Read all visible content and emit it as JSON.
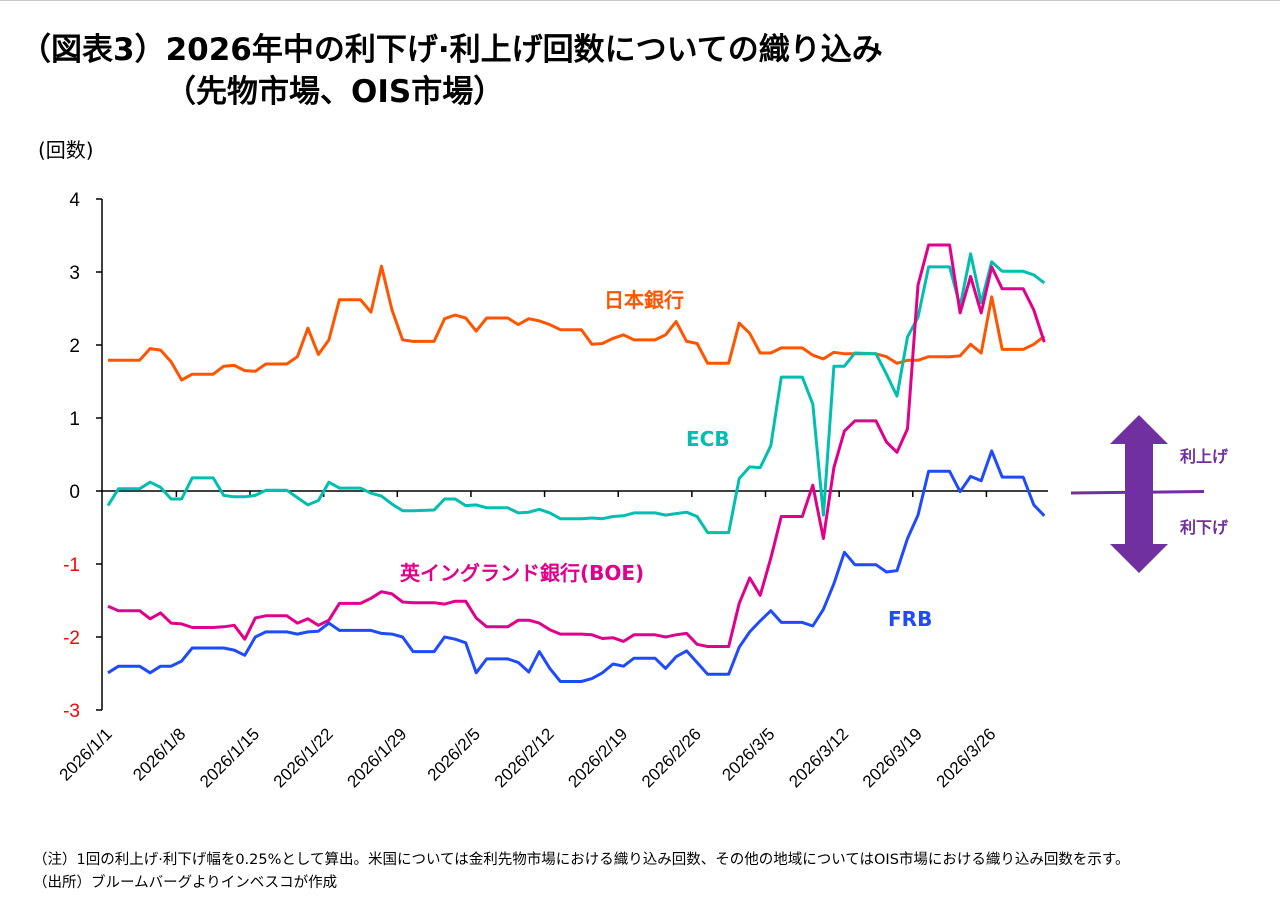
{
  "title": {
    "line1": "（図表3）2026年中の利下げ·利上げ回数についての織り込み",
    "line2": "（先物市場、OIS市場）"
  },
  "footnotes": {
    "note": "（注）1回の利上げ·利下げ幅を0.25%として算出。米国については金利先物市場における織り込み回数、その他の地域についてはOIS市場における織り込み回数を示す。",
    "source": "（出所）ブルームバーグよりインベスコが作成"
  },
  "legend_arrow": {
    "up_label": "利上げ",
    "down_label": "利下げ",
    "color": "#7030A0"
  },
  "chart_data": {
    "type": "line",
    "ylabel": "(回数)",
    "ylim": [
      -3,
      4
    ],
    "yticks": [
      "4",
      "3",
      "2",
      "1",
      "0",
      "-1",
      "-2",
      "-3"
    ],
    "ytick_colors": {
      "positive": "#000000",
      "negative": "#FF0000"
    },
    "xlim": [
      "2026/1/1",
      "2026/3/31"
    ],
    "xticks": [
      "2026/1/1",
      "2026/1/8",
      "2026/1/15",
      "2026/1/22",
      "2026/1/29",
      "2026/2/5",
      "2026/2/12",
      "2026/2/19",
      "2026/2/26",
      "2026/3/5",
      "2026/3/12",
      "2026/3/19",
      "2026/3/26"
    ],
    "grid": false,
    "legend": "inline labels",
    "x": [
      "2026/1/1",
      "2026/1/2",
      "2026/1/4",
      "2026/1/5",
      "2026/1/6",
      "2026/1/7",
      "2026/1/8",
      "2026/1/9",
      "2026/1/11",
      "2026/1/12",
      "2026/1/13",
      "2026/1/14",
      "2026/1/15",
      "2026/1/16",
      "2026/1/18",
      "2026/1/19",
      "2026/1/20",
      "2026/1/21",
      "2026/1/22",
      "2026/1/23",
      "2026/1/25",
      "2026/1/26",
      "2026/1/27",
      "2026/1/28",
      "2026/1/29",
      "2026/1/30",
      "2026/2/1",
      "2026/2/2",
      "2026/2/3",
      "2026/2/4",
      "2026/2/5",
      "2026/2/6",
      "2026/2/8",
      "2026/2/9",
      "2026/2/10",
      "2026/2/11",
      "2026/2/12",
      "2026/2/13",
      "2026/2/15",
      "2026/2/16",
      "2026/2/17",
      "2026/2/18",
      "2026/2/19",
      "2026/2/20",
      "2026/2/22",
      "2026/2/23",
      "2026/2/24",
      "2026/2/25",
      "2026/2/26",
      "2026/2/27",
      "2026/3/1",
      "2026/3/2",
      "2026/3/3",
      "2026/3/4",
      "2026/3/5",
      "2026/3/6",
      "2026/3/8",
      "2026/3/9",
      "2026/3/10",
      "2026/3/11",
      "2026/3/12",
      "2026/3/13",
      "2026/3/15",
      "2026/3/16",
      "2026/3/17",
      "2026/3/18",
      "2026/3/19",
      "2026/3/20",
      "2026/3/22",
      "2026/3/23",
      "2026/3/24",
      "2026/3/25",
      "2026/3/26",
      "2026/3/27",
      "2026/3/29",
      "2026/3/30",
      "2026/3/31"
    ],
    "series": [
      {
        "name": "日本銀行",
        "color": "#FF5500",
        "values": [
          1.79,
          1.79,
          1.79,
          1.95,
          1.93,
          1.77,
          1.52,
          1.6,
          1.6,
          1.71,
          1.72,
          1.65,
          1.64,
          1.74,
          1.74,
          1.84,
          2.23,
          1.87,
          2.07,
          2.62,
          2.62,
          2.45,
          3.08,
          2.48,
          2.07,
          2.05,
          2.05,
          2.36,
          2.41,
          2.37,
          2.19,
          2.37,
          2.37,
          2.28,
          2.36,
          2.33,
          2.28,
          2.21,
          2.21,
          2.01,
          2.02,
          2.09,
          2.14,
          2.07,
          2.07,
          2.14,
          2.32,
          2.05,
          2.02,
          1.75,
          1.75,
          2.3,
          2.16,
          1.89,
          1.89,
          1.96,
          1.96,
          1.86,
          1.81,
          1.9,
          1.88,
          1.88,
          1.88,
          1.84,
          1.75,
          1.79,
          1.79,
          1.84,
          1.84,
          1.85,
          2.01,
          1.89,
          2.66,
          1.94,
          1.94,
          2.01,
          2.12
        ]
      },
      {
        "name": "ECB",
        "color": "#00BFB0",
        "values": [
          -0.2,
          0.03,
          0.03,
          0.12,
          0.05,
          -0.11,
          -0.11,
          0.18,
          0.18,
          -0.06,
          -0.08,
          -0.08,
          -0.06,
          0.01,
          0.01,
          -0.09,
          -0.19,
          -0.13,
          0.12,
          0.04,
          0.04,
          -0.03,
          -0.07,
          -0.18,
          -0.27,
          -0.27,
          -0.26,
          -0.11,
          -0.11,
          -0.2,
          -0.19,
          -0.23,
          -0.23,
          -0.3,
          -0.29,
          -0.25,
          -0.3,
          -0.38,
          -0.38,
          -0.37,
          -0.38,
          -0.35,
          -0.34,
          -0.3,
          -0.3,
          -0.33,
          -0.31,
          -0.29,
          -0.35,
          -0.57,
          -0.57,
          0.17,
          0.33,
          0.32,
          0.62,
          1.56,
          1.56,
          1.19,
          -0.33,
          1.71,
          1.71,
          1.89,
          1.88,
          1.6,
          1.3,
          2.11,
          2.38,
          3.07,
          3.07,
          2.53,
          3.25,
          2.58,
          3.14,
          3.01,
          3.01,
          2.96,
          2.85
        ]
      },
      {
        "name": "英イングランド銀行(BOE)",
        "color": "#E0008C",
        "values": [
          -1.58,
          -1.64,
          -1.64,
          -1.75,
          -1.67,
          -1.81,
          -1.82,
          -1.87,
          -1.87,
          -1.86,
          -1.84,
          -2.03,
          -1.74,
          -1.71,
          -1.71,
          -1.81,
          -1.75,
          -1.84,
          -1.77,
          -1.54,
          -1.54,
          -1.47,
          -1.38,
          -1.41,
          -1.52,
          -1.53,
          -1.53,
          -1.55,
          -1.51,
          -1.51,
          -1.74,
          -1.86,
          -1.86,
          -1.77,
          -1.77,
          -1.81,
          -1.9,
          -1.96,
          -1.96,
          -1.97,
          -2.02,
          -2.01,
          -2.06,
          -1.97,
          -1.97,
          -2.0,
          -1.97,
          -1.95,
          -2.1,
          -2.13,
          -2.13,
          -1.54,
          -1.19,
          -1.43,
          -0.92,
          -0.35,
          -0.35,
          0.08,
          -0.65,
          0.32,
          0.82,
          0.96,
          0.96,
          0.67,
          0.53,
          0.85,
          2.82,
          3.37,
          3.37,
          2.44,
          2.94,
          2.44,
          3.07,
          2.77,
          2.77,
          2.48,
          2.04
        ]
      },
      {
        "name": "FRB",
        "color": "#1F4BFF",
        "values": [
          -2.49,
          -2.4,
          -2.4,
          -2.49,
          -2.4,
          -2.4,
          -2.33,
          -2.15,
          -2.15,
          -2.15,
          -2.18,
          -2.25,
          -2.0,
          -1.93,
          -1.93,
          -1.96,
          -1.93,
          -1.92,
          -1.81,
          -1.91,
          -1.91,
          -1.91,
          -1.95,
          -1.96,
          -2.0,
          -2.2,
          -2.2,
          -2.0,
          -2.03,
          -2.08,
          -2.49,
          -2.3,
          -2.3,
          -2.35,
          -2.48,
          -2.2,
          -2.43,
          -2.61,
          -2.61,
          -2.57,
          -2.49,
          -2.37,
          -2.4,
          -2.29,
          -2.29,
          -2.43,
          -2.27,
          -2.19,
          -2.35,
          -2.51,
          -2.51,
          -2.14,
          -1.93,
          -1.78,
          -1.64,
          -1.8,
          -1.8,
          -1.85,
          -1.62,
          -1.27,
          -0.84,
          -1.01,
          -1.01,
          -1.11,
          -1.09,
          -0.65,
          -0.33,
          0.27,
          0.27,
          -0.01,
          0.2,
          0.14,
          0.55,
          0.19,
          0.19,
          -0.19,
          -0.34
        ]
      }
    ]
  }
}
